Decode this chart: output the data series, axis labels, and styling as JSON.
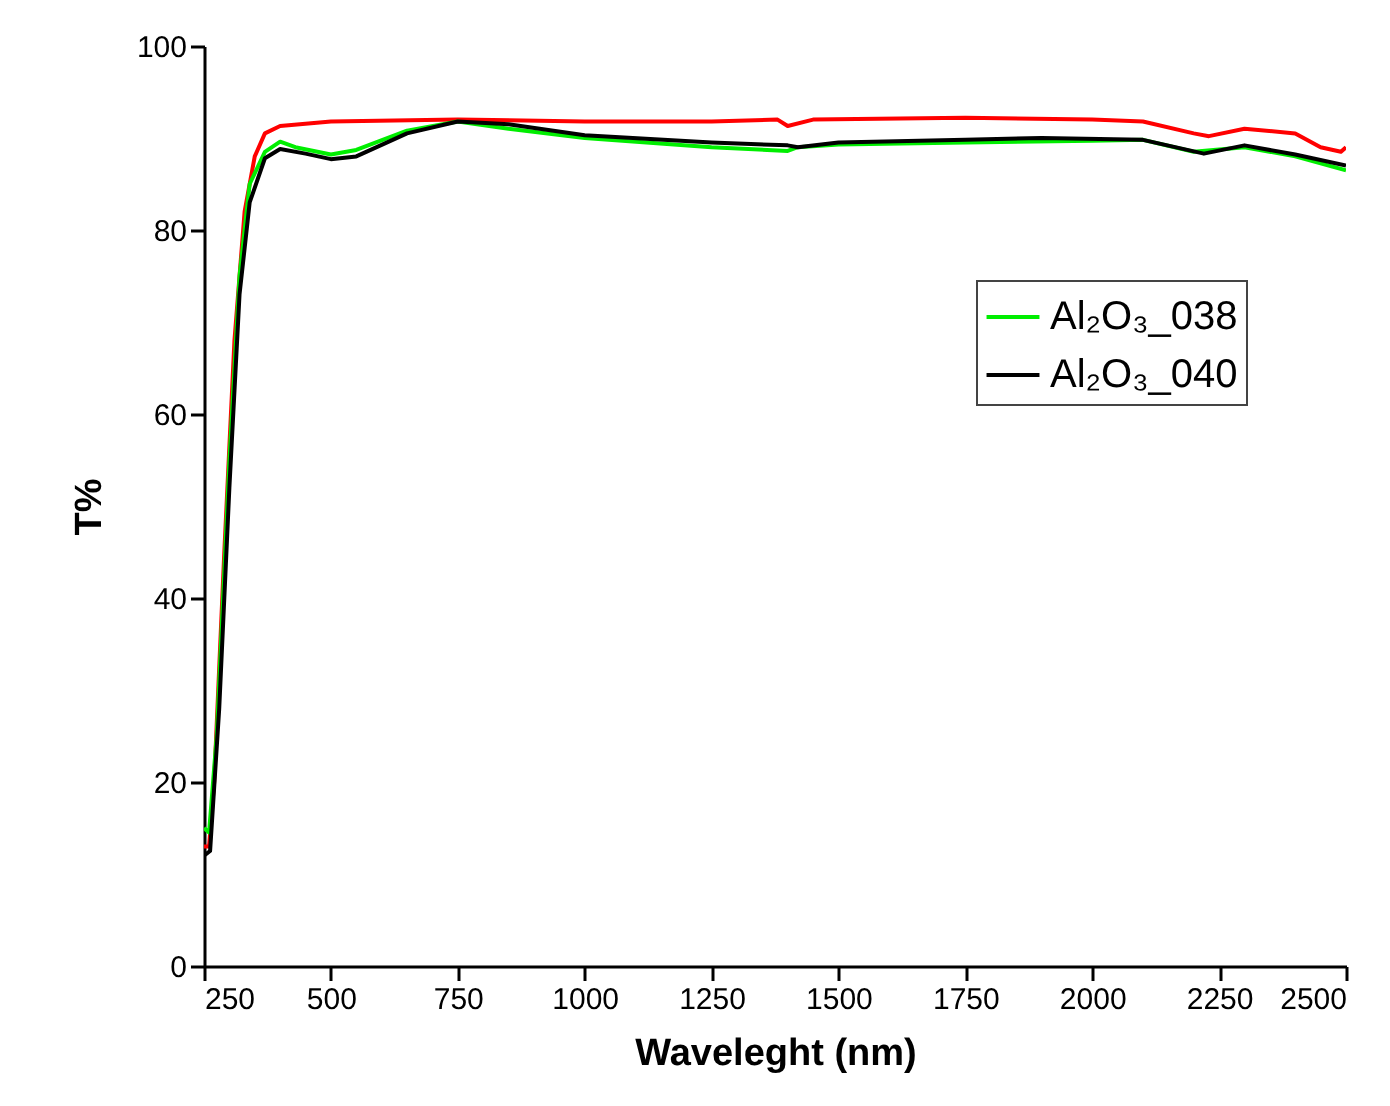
{
  "chart_data": {
    "type": "line",
    "xlabel": "Waveleght (nm)",
    "ylabel": "T%",
    "xlim": [
      250,
      2500
    ],
    "ylim": [
      0,
      100
    ],
    "xticks": [
      250,
      500,
      750,
      1000,
      1250,
      1500,
      1750,
      2000,
      2250,
      2500
    ],
    "yticks": [
      0,
      20,
      40,
      60,
      80,
      100
    ],
    "grid": false,
    "legend": "top right",
    "line_style": "solid",
    "marker": "none",
    "series": [
      {
        "color": "#ff0000",
        "x": [
          250,
          260,
          270,
          290,
          310,
          330,
          350,
          370,
          400,
          500,
          750,
          1000,
          1250,
          1380,
          1400,
          1450,
          1750,
          2000,
          2100,
          2200,
          2230,
          2300,
          2400,
          2450,
          2490,
          2500
        ],
        "values": [
          13,
          13,
          20,
          45,
          68,
          82,
          88,
          90.5,
          91.3,
          91.8,
          92,
          91.8,
          91.8,
          92,
          91.3,
          92,
          92.2,
          92,
          91.8,
          90.5,
          90.2,
          91,
          90.5,
          89,
          88.5,
          89
        ]
      },
      {
        "name": "Al₂O₃_038",
        "color": "#00ee00",
        "x": [
          250,
          260,
          275,
          300,
          320,
          340,
          370,
          400,
          430,
          500,
          550,
          650,
          750,
          850,
          1000,
          1250,
          1400,
          1420,
          1500,
          1750,
          2000,
          2100,
          2200,
          2300,
          2400,
          2500
        ],
        "values": [
          15,
          14.5,
          25,
          55,
          75,
          85,
          88.5,
          89.6,
          89,
          88.2,
          88.7,
          90.8,
          91.8,
          91,
          90,
          89,
          88.6,
          89,
          89.3,
          89.5,
          89.7,
          89.8,
          88.5,
          89,
          88,
          86.5
        ]
      },
      {
        "name": "Al₂O₃_040",
        "color": "#000000",
        "x": [
          250,
          262,
          280,
          300,
          320,
          340,
          370,
          400,
          450,
          500,
          550,
          650,
          750,
          850,
          1000,
          1250,
          1400,
          1420,
          1500,
          1750,
          1900,
          2100,
          2220,
          2300,
          2400,
          2500
        ],
        "values": [
          12,
          12.5,
          28,
          52,
          73,
          83,
          87.8,
          88.8,
          88.3,
          87.7,
          88,
          90.5,
          91.8,
          91.5,
          90.3,
          89.5,
          89.2,
          89,
          89.5,
          89.8,
          90,
          89.8,
          88.3,
          89.2,
          88.2,
          87
        ]
      }
    ]
  }
}
